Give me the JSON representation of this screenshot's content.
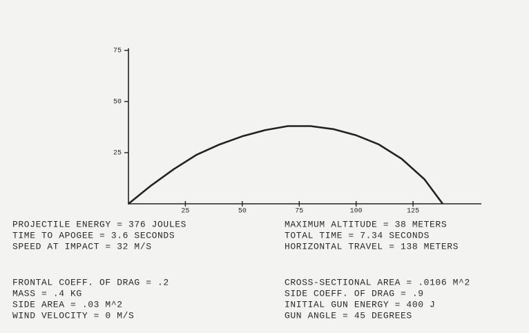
{
  "chart_data": {
    "type": "line",
    "x": [
      0,
      10,
      20,
      30,
      40,
      50,
      60,
      70,
      80,
      90,
      100,
      110,
      120,
      130,
      138
    ],
    "values": [
      0,
      9,
      17,
      24,
      29,
      33,
      36,
      38,
      38,
      36.5,
      33.5,
      29,
      22,
      12,
      0
    ],
    "color": "#222222",
    "xlim": [
      0,
      155
    ],
    "ylim": [
      0,
      76
    ],
    "xticks": [
      25,
      50,
      75,
      100,
      125
    ],
    "yticks": [
      25,
      50,
      75
    ]
  },
  "readout": {
    "left": [
      "PROJECTILE ENERGY = 376 JOULES",
      "TIME TO APOGEE = 3.6 SECONDS",
      "SPEED AT IMPACT = 32 M/S"
    ],
    "right": [
      "MAXIMUM ALTITUDE = 38 METERS",
      "TOTAL TIME = 7.34 SECONDS",
      "HORIZONTAL TRAVEL = 138 METERS"
    ]
  },
  "parameters": {
    "left": [
      "FRONTAL COEFF. OF DRAG = .2",
      "MASS = .4 KG",
      "SIDE AREA = .03 M^2",
      "WIND VELOCITY = 0 M/S"
    ],
    "right": [
      "CROSS-SECTIONAL AREA = .0106 M^2",
      "SIDE COEFF. OF DRAG = .9",
      "INITIAL GUN ENERGY = 400 J",
      "GUN ANGLE = 45 DEGREES"
    ]
  }
}
